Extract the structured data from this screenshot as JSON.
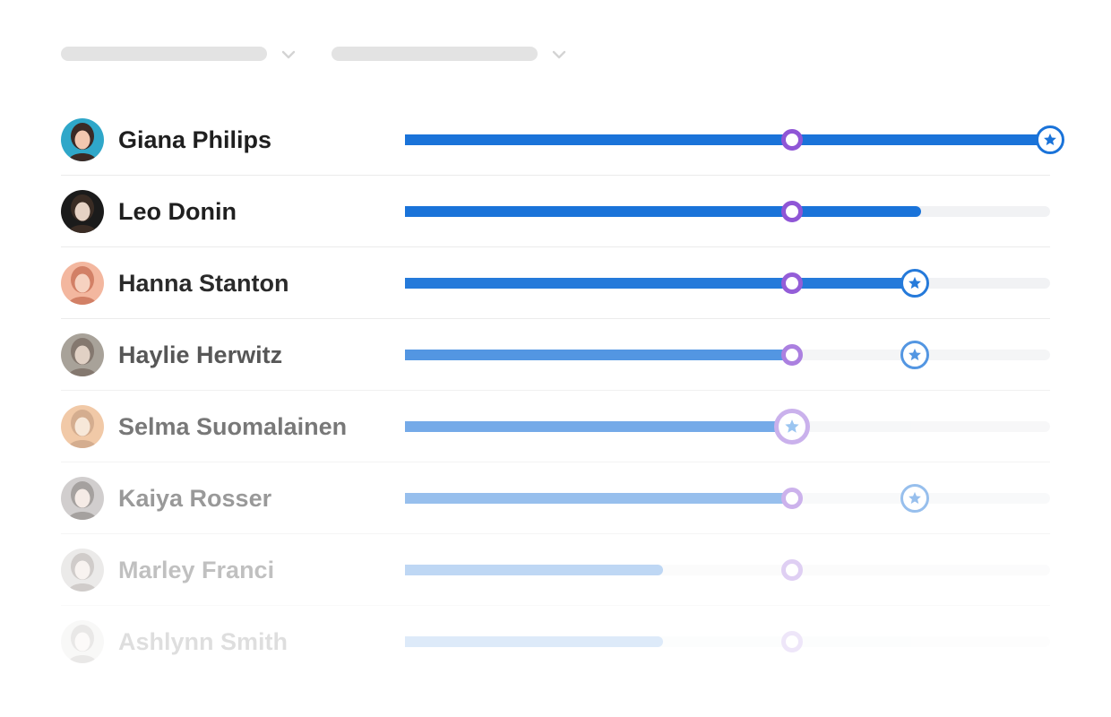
{
  "filters": [
    {
      "icon": "chevron-down-icon"
    },
    {
      "icon": "chevron-down-icon"
    }
  ],
  "colors": {
    "progress": "#1a73d9",
    "track": "#f1f2f4",
    "target_marker": "#8f56d6",
    "goal_marker": "#1a73d9",
    "name_text": "#1f1f1f"
  },
  "people": [
    {
      "name": "Giana Philips",
      "progress": 1.0,
      "target": 0.6,
      "goal": 1.0,
      "opacity": 1.0
    },
    {
      "name": "Leo Donin",
      "progress": 0.8,
      "target": 0.6,
      "goal": null,
      "opacity": 1.0
    },
    {
      "name": "Hanna Stanton",
      "progress": 0.79,
      "target": 0.6,
      "goal": 0.79,
      "opacity": 0.95
    },
    {
      "name": "Haylie Herwitz",
      "progress": 0.6,
      "target": 0.6,
      "goal": 0.79,
      "opacity": 0.75
    },
    {
      "name": "Selma Suomalainen",
      "progress": 0.6,
      "target": 0.6,
      "goal": 0.6,
      "opacity": 0.6
    },
    {
      "name": "Kaiya Rosser",
      "progress": 0.6,
      "target": 0.6,
      "goal": 0.79,
      "opacity": 0.45
    },
    {
      "name": "Marley Franci",
      "progress": 0.4,
      "target": 0.6,
      "goal": null,
      "opacity": 0.28
    },
    {
      "name": "Ashlynn Smith",
      "progress": 0.4,
      "target": 0.6,
      "goal": null,
      "opacity": 0.14
    }
  ]
}
